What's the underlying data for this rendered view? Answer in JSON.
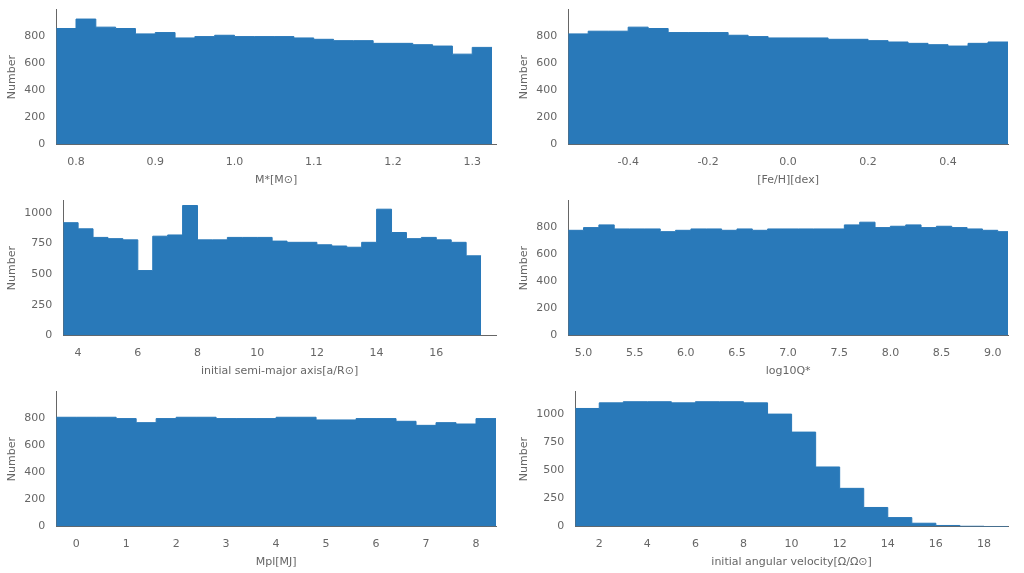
{
  "chart_data": [
    {
      "type": "histogram",
      "xlabel": "M*[M⊙]",
      "ylabel": "Number",
      "color": "#2979b9",
      "grid": false,
      "xlim": [
        0.775,
        1.33
      ],
      "ylim": [
        0,
        1000
      ],
      "xticks": [
        0.8,
        0.9,
        {
          "value": 1.0,
          "label": "1.0"
        },
        1.1,
        1.2,
        1.3
      ],
      "yticks": [
        0,
        200,
        400,
        600,
        800
      ],
      "bins": [
        0.775,
        0.8,
        0.825,
        0.85,
        0.875,
        0.9,
        0.925,
        0.95,
        0.975,
        1.0,
        1.025,
        1.05,
        1.075,
        1.1,
        1.125,
        1.15,
        1.175,
        1.2,
        1.225,
        1.25,
        1.275,
        1.3,
        1.325
      ],
      "values": [
        860,
        930,
        870,
        860,
        820,
        830,
        790,
        800,
        810,
        800,
        800,
        800,
        790,
        780,
        770,
        770,
        750,
        750,
        740,
        730,
        670,
        720
      ]
    },
    {
      "type": "histogram",
      "xlabel": "[Fe/H][dex]",
      "ylabel": "Number",
      "color": "#2979b9",
      "grid": false,
      "xlim": [
        -0.55,
        0.55
      ],
      "ylim": [
        0,
        1000
      ],
      "xticks": [
        -0.4,
        -0.2,
        {
          "value": 0.0,
          "label": "0.0"
        },
        0.2,
        0.4
      ],
      "yticks": [
        0,
        200,
        400,
        600,
        800
      ],
      "bins": [
        -0.55,
        -0.5,
        -0.45,
        -0.4,
        -0.35,
        -0.3,
        -0.25,
        -0.2,
        -0.15,
        -0.1,
        -0.05,
        0.0,
        0.05,
        0.1,
        0.15,
        0.2,
        0.25,
        0.3,
        0.35,
        0.4,
        0.45,
        0.5,
        0.55
      ],
      "values": [
        820,
        840,
        840,
        870,
        860,
        830,
        830,
        830,
        810,
        800,
        790,
        790,
        790,
        780,
        780,
        770,
        760,
        750,
        740,
        730,
        750,
        760
      ]
    },
    {
      "type": "histogram",
      "xlabel": "initial semi-major axis[a/R⊙]",
      "ylabel": "Number",
      "color": "#2979b9",
      "grid": false,
      "xlim": [
        3.5,
        18.0
      ],
      "ylim": [
        0,
        1100
      ],
      "xticks": [
        4,
        6,
        8,
        10,
        12,
        14,
        16
      ],
      "yticks": [
        0,
        250,
        500,
        750,
        1000
      ],
      "bins": [
        3.5,
        4.0,
        4.5,
        5.0,
        5.5,
        6.0,
        6.5,
        7.0,
        7.5,
        8.0,
        8.5,
        9.0,
        9.5,
        10.0,
        10.5,
        11.0,
        11.5,
        12.0,
        12.5,
        13.0,
        13.5,
        14.0,
        14.5,
        15.0,
        15.5,
        16.0,
        16.5,
        17.0,
        17.5
      ],
      "values": [
        920,
        870,
        800,
        790,
        780,
        530,
        810,
        820,
        1060,
        780,
        780,
        800,
        800,
        800,
        770,
        760,
        760,
        740,
        730,
        720,
        760,
        1030,
        840,
        790,
        800,
        780,
        760,
        650
      ]
    },
    {
      "type": "histogram",
      "xlabel": "log10Q*",
      "ylabel": "Number",
      "color": "#2979b9",
      "grid": false,
      "xlim": [
        4.85,
        9.15
      ],
      "ylim": [
        0,
        1000
      ],
      "xticks": [
        {
          "value": 5.0,
          "label": "5.0"
        },
        5.5,
        {
          "value": 6.0,
          "label": "6.0"
        },
        6.5,
        {
          "value": 7.0,
          "label": "7.0"
        },
        7.5,
        {
          "value": 8.0,
          "label": "8.0"
        },
        8.5,
        {
          "value": 9.0,
          "label": "9.0"
        }
      ],
      "yticks": [
        0,
        200,
        400,
        600,
        800
      ],
      "bins": [
        4.85,
        5.0,
        5.15,
        5.3,
        5.45,
        5.6,
        5.75,
        5.9,
        6.05,
        6.2,
        6.35,
        6.5,
        6.65,
        6.8,
        6.95,
        7.1,
        7.25,
        7.4,
        7.55,
        7.7,
        7.85,
        8.0,
        8.15,
        8.3,
        8.45,
        8.6,
        8.75,
        8.9,
        9.05,
        9.15
      ],
      "values": [
        780,
        800,
        820,
        790,
        790,
        790,
        770,
        780,
        790,
        790,
        780,
        790,
        780,
        790,
        790,
        790,
        790,
        790,
        820,
        840,
        800,
        810,
        820,
        800,
        810,
        800,
        790,
        780,
        770
      ]
    },
    {
      "type": "histogram",
      "xlabel": "Mpl[MJ]",
      "ylabel": "Number",
      "color": "#2979b9",
      "grid": false,
      "xlim": [
        -0.4,
        8.4
      ],
      "ylim": [
        0,
        1000
      ],
      "xticks": [
        0,
        1,
        2,
        3,
        4,
        5,
        6,
        7,
        8
      ],
      "yticks": [
        0,
        200,
        400,
        600,
        800
      ],
      "bins": [
        -0.4,
        0.0,
        0.4,
        0.8,
        1.2,
        1.6,
        2.0,
        2.4,
        2.8,
        3.2,
        3.6,
        4.0,
        4.4,
        4.8,
        5.2,
        5.6,
        6.0,
        6.4,
        6.8,
        7.2,
        7.6,
        8.0,
        8.4
      ],
      "values": [
        810,
        810,
        810,
        800,
        770,
        800,
        810,
        810,
        800,
        800,
        800,
        810,
        810,
        790,
        790,
        800,
        800,
        780,
        750,
        770,
        760,
        800
      ]
    },
    {
      "type": "histogram",
      "xlabel": "initial angular velocity[Ω/Ω⊙]",
      "ylabel": "Number",
      "color": "#2979b9",
      "grid": false,
      "xlim": [
        1.0,
        19.0
      ],
      "ylim": [
        0,
        1200
      ],
      "xticks": [
        2,
        4,
        6,
        8,
        10,
        12,
        14,
        16,
        18
      ],
      "yticks": [
        0,
        250,
        500,
        750,
        1000
      ],
      "bins": [
        1.0,
        2.0,
        3.0,
        4.0,
        5.0,
        6.0,
        7.0,
        8.0,
        9.0,
        10.0,
        11.0,
        12.0,
        13.0,
        14.0,
        15.0,
        16.0,
        17.0,
        18.0,
        19.0
      ],
      "values": [
        1050,
        1100,
        1110,
        1110,
        1100,
        1110,
        1110,
        1100,
        1000,
        840,
        530,
        340,
        170,
        80,
        30,
        10,
        3,
        1
      ]
    }
  ]
}
